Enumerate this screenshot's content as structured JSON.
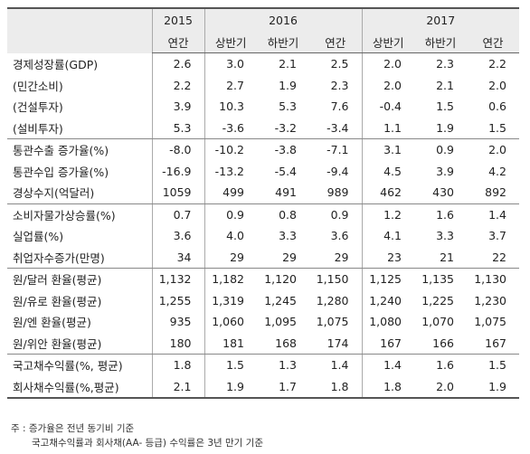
{
  "years": [
    "2015",
    "2016",
    "2017"
  ],
  "subheaders": [
    "연간",
    "상반기",
    "하반기",
    "연간",
    "상반기",
    "하반기",
    "연간"
  ],
  "groups": [
    [
      {
        "label": "경제성장률(GDP)",
        "values": [
          "2.6",
          "3.0",
          "2.1",
          "2.5",
          "2.0",
          "2.3",
          "2.2"
        ]
      },
      {
        "label": "(민간소비)",
        "values": [
          "2.2",
          "2.7",
          "1.9",
          "2.3",
          "2.0",
          "2.1",
          "2.0"
        ]
      },
      {
        "label": "(건설투자)",
        "values": [
          "3.9",
          "10.3",
          "5.3",
          "7.6",
          "-0.4",
          "1.5",
          "0.6"
        ]
      },
      {
        "label": "(설비투자)",
        "values": [
          "5.3",
          "-3.6",
          "-3.2",
          "-3.4",
          "1.1",
          "1.9",
          "1.5"
        ]
      }
    ],
    [
      {
        "label": "통관수출 증가율(%)",
        "values": [
          "-8.0",
          "-10.2",
          "-3.8",
          "-7.1",
          "3.1",
          "0.9",
          "2.0"
        ]
      },
      {
        "label": "통관수입 증가율(%)",
        "values": [
          "-16.9",
          "-13.2",
          "-5.4",
          "-9.4",
          "4.5",
          "3.9",
          "4.2"
        ]
      },
      {
        "label": "경상수지(억달러)",
        "values": [
          "1059",
          "499",
          "491",
          "989",
          "462",
          "430",
          "892"
        ]
      }
    ],
    [
      {
        "label": "소비자물가상승률(%)",
        "values": [
          "0.7",
          "0.9",
          "0.8",
          "0.9",
          "1.2",
          "1.6",
          "1.4"
        ]
      },
      {
        "label": "실업률(%)",
        "values": [
          "3.6",
          "4.0",
          "3.3",
          "3.6",
          "4.1",
          "3.3",
          "3.7"
        ]
      },
      {
        "label": "취업자수증가(만명)",
        "values": [
          "34",
          "29",
          "29",
          "29",
          "23",
          "21",
          "22"
        ]
      }
    ],
    [
      {
        "label": "원/달러 환율(평균)",
        "values": [
          "1,132",
          "1,182",
          "1,120",
          "1,150",
          "1,125",
          "1,135",
          "1,130"
        ]
      },
      {
        "label": "원/유로 환율(평균)",
        "values": [
          "1,255",
          "1,319",
          "1,245",
          "1,280",
          "1,240",
          "1,225",
          "1,230"
        ]
      },
      {
        "label": "원/엔 환율(평균)",
        "values": [
          "935",
          "1,060",
          "1,095",
          "1,075",
          "1,080",
          "1,070",
          "1,075"
        ]
      },
      {
        "label": "원/위안 환율(평균)",
        "values": [
          "180",
          "181",
          "168",
          "174",
          "167",
          "166",
          "167"
        ]
      }
    ],
    [
      {
        "label": "국고채수익률(%, 평균)",
        "values": [
          "1.8",
          "1.5",
          "1.3",
          "1.4",
          "1.4",
          "1.6",
          "1.5"
        ]
      },
      {
        "label": "회사채수익률(%,평균)",
        "values": [
          "2.1",
          "1.9",
          "1.7",
          "1.8",
          "1.8",
          "2.0",
          "1.9"
        ]
      }
    ]
  ],
  "notes": {
    "line1": "주 : 증가율은 전년 동기비 기준",
    "line2": "국고채수익률과 회사채(AA- 등급) 수익률은 3년 만기 기준"
  }
}
